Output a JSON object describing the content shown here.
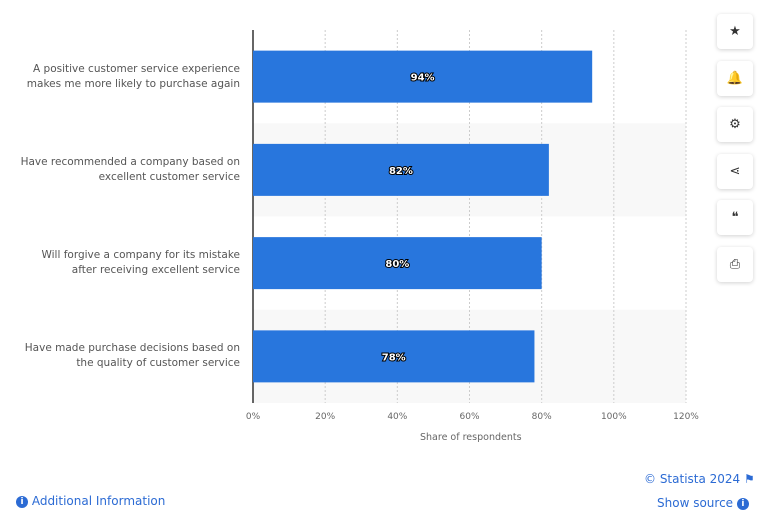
{
  "chart_data": {
    "type": "bar",
    "orientation": "horizontal",
    "categories": [
      "A positive customer service experience makes me more likely to purchase again",
      "Have recommended a company based on excellent customer service",
      "Will forgive a company for its mistake after receiving excellent service",
      "Have made purchase decisions based on the quality of customer service"
    ],
    "category_lines": [
      [
        "A positive customer service experience",
        "makes me more likely to purchase again"
      ],
      [
        "Have recommended a company based on",
        "excellent customer service"
      ],
      [
        "Will forgive a company for its mistake",
        "after receiving excellent service"
      ],
      [
        "Have made purchase decisions based on",
        "the quality of customer service"
      ]
    ],
    "values": [
      94,
      82,
      80,
      78
    ],
    "data_labels": [
      "94%",
      "82%",
      "80%",
      "78%"
    ],
    "xlabel": "Share of respondents",
    "xlim": [
      0,
      120
    ],
    "ticks": [
      "0%",
      "20%",
      "40%",
      "60%",
      "80%",
      "100%",
      "120%"
    ],
    "grid": true,
    "bar_color": "#2876dd"
  },
  "sidebar": {
    "icons": [
      "star-icon",
      "bell-icon",
      "gear-icon",
      "share-icon",
      "quote-icon",
      "print-icon"
    ],
    "glyphs": [
      "★",
      "🔔",
      "⚙",
      "⋖",
      "❝",
      "⎙"
    ]
  },
  "footer": {
    "copyright": "© Statista 2024",
    "show_source": "Show source",
    "additional_info": "Additional Information"
  }
}
